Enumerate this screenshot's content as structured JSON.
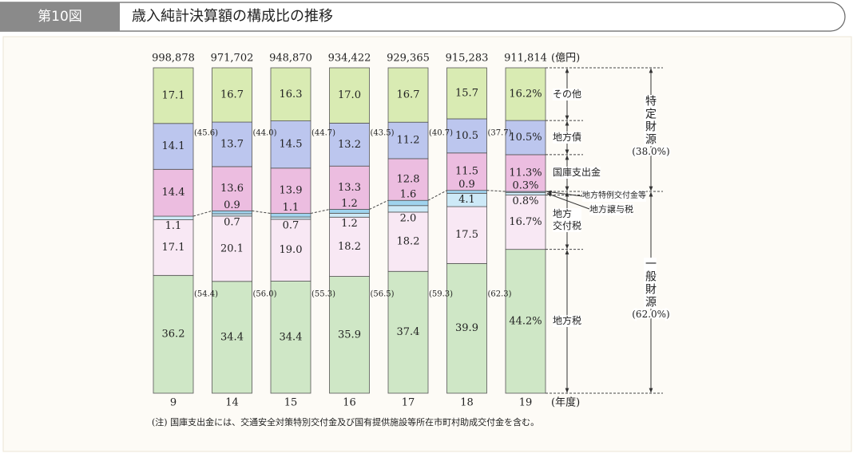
{
  "header": {
    "figure": "第10図",
    "title": "歳入純計決算額の構成比の推移"
  },
  "chart_data": {
    "type": "stacked_bar",
    "categories": [
      "9",
      "14",
      "15",
      "16",
      "17",
      "18",
      "19"
    ],
    "x_unit": "(年度)",
    "totals": {
      "unit": "(億円)",
      "values": [
        998878,
        971702,
        948870,
        934422,
        929365,
        915283,
        911814
      ],
      "value_labels": [
        "998,878",
        "971,702",
        "948,870",
        "934,422",
        "929,365",
        "915,283",
        "911,814"
      ]
    },
    "series": [
      {
        "name": "地方税",
        "color": "#cfe7c6",
        "values": [
          36.2,
          34.4,
          34.4,
          35.9,
          37.4,
          39.9,
          44.2
        ],
        "value_labels": [
          "36.2",
          "34.4",
          "34.4",
          "35.9",
          "37.4",
          "39.9",
          "44.2%"
        ]
      },
      {
        "name": "地方\n交付税",
        "color": "#f8e8f4",
        "values": [
          17.1,
          20.1,
          19.0,
          18.2,
          18.2,
          17.5,
          16.7
        ],
        "value_labels": [
          "17.1",
          "20.1",
          "19.0",
          "18.2",
          "18.2",
          "17.5",
          "16.7%"
        ]
      },
      {
        "name": "地方譲与税",
        "color": "#cde9f7",
        "values": [
          1.1,
          0.7,
          0.7,
          1.2,
          2.0,
          4.1,
          0.8
        ],
        "value_labels": [
          "1.1",
          "0.7",
          "0.7",
          "1.2",
          "2.0",
          "4.1",
          "0.8%"
        ]
      },
      {
        "name": "地方特例交付金等",
        "color": "#9fd3ee",
        "values": [
          null,
          0.9,
          1.1,
          1.2,
          1.6,
          0.9,
          0.3
        ],
        "value_labels": [
          null,
          "0.9",
          "1.1",
          "1.2",
          "1.6",
          "0.9",
          "0.3%"
        ]
      },
      {
        "name": "国庫支出金",
        "color": "#ecbde0",
        "values": [
          14.4,
          13.6,
          13.9,
          13.3,
          12.8,
          11.5,
          11.3
        ],
        "value_labels": [
          "14.4",
          "13.6",
          "13.9",
          "13.3",
          "12.8",
          "11.5",
          "11.3%"
        ]
      },
      {
        "name": "地方債",
        "color": "#bcc6ee",
        "values": [
          14.1,
          13.7,
          14.5,
          13.2,
          11.2,
          10.5,
          10.5
        ],
        "value_labels": [
          "14.1",
          "13.7",
          "14.5",
          "13.2",
          "11.2",
          "10.5",
          "10.5%"
        ]
      },
      {
        "name": "その他",
        "color": "#d9ebb3",
        "values": [
          17.1,
          16.7,
          16.3,
          17.0,
          16.7,
          15.7,
          16.2
        ],
        "value_labels": [
          "17.1",
          "16.7",
          "16.3",
          "17.0",
          "16.7",
          "15.7",
          "16.2%"
        ]
      }
    ],
    "general_share": {
      "values": [
        54.4,
        56.0,
        55.3,
        56.5,
        59.3,
        62.3
      ],
      "value_labels": [
        "(54.4)",
        "(56.0)",
        "(55.3)",
        "(56.5)",
        "(59.3)",
        "(62.3)"
      ]
    },
    "specific_share": {
      "values": [
        45.6,
        44.0,
        44.7,
        43.5,
        40.7,
        37.7
      ],
      "value_labels": [
        "(45.6)",
        "(44.0)",
        "(44.7)",
        "(43.5)",
        "(40.7)",
        "(37.7)"
      ]
    },
    "brackets": [
      {
        "label": "特定財源",
        "value": 38.0,
        "value_label": "(38.0%)"
      },
      {
        "label": "一般財源",
        "value": 62.0,
        "value_label": "(62.0%)"
      }
    ],
    "note": "(注)  国庫支出金には、交通安全対策特別交付金及び国有提供施設等所在市町村助成交付金を含む。"
  }
}
